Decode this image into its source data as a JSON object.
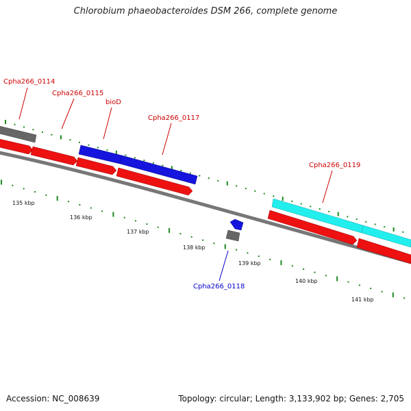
{
  "title": "Chlorobium phaeobacteroides DSM 266, complete genome",
  "footer": {
    "accession": "Accession: NC_008639",
    "topology": "Topology: circular; Length: 3,133,902 bp; Genes: 2,705"
  },
  "colors": {
    "backbone": "#777777",
    "tick": "#1a8a1a",
    "cds_red": "#ee1111",
    "cds_blue": "#1515dd",
    "cds_cyan": "#22eeee",
    "cds_gray": "#666666",
    "label_red": "#cc0000",
    "label_blue": "#0000cc"
  },
  "ruler": {
    "labels": [
      "135 kbp",
      "136 kbp",
      "137 kbp",
      "138 kbp",
      "139 kbp",
      "140 kbp",
      "141 kbp"
    ]
  },
  "gene_labels": [
    {
      "name": "Cpha266_0114",
      "color": "red"
    },
    {
      "name": "Cpha266_0115",
      "color": "red"
    },
    {
      "name": "bioD",
      "color": "red"
    },
    {
      "name": "Cpha266_0117",
      "color": "red"
    },
    {
      "name": "Cpha266_0119",
      "color": "red"
    },
    {
      "name": "Cpha266_0118",
      "color": "blue"
    }
  ]
}
